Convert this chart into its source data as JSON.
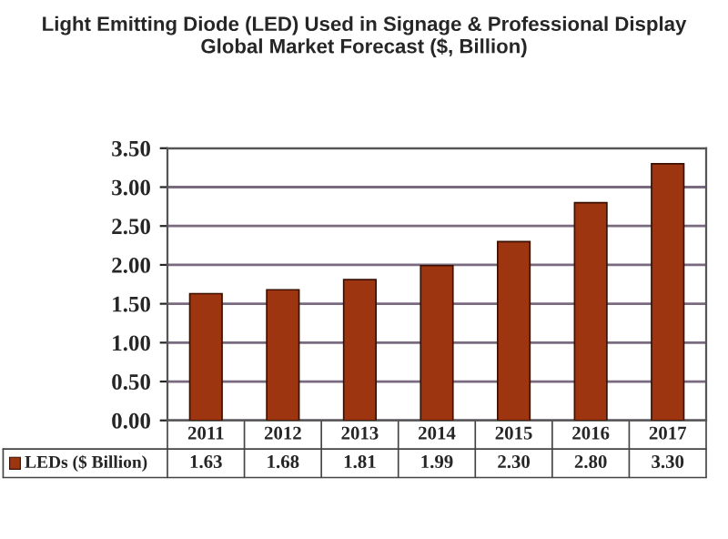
{
  "chart_data": {
    "type": "bar",
    "title": "Light Emitting Diode (LED) Used in Signage & Professional Display\nGlobal Market Forecast ($, Billion)",
    "categories": [
      "2011",
      "2012",
      "2013",
      "2014",
      "2015",
      "2016",
      "2017"
    ],
    "series": [
      {
        "name": "LEDs ($ Billion)",
        "color": "#9c3510",
        "values": [
          1.63,
          1.68,
          1.81,
          1.99,
          2.3,
          2.8,
          3.3
        ],
        "value_labels": [
          "1.63",
          "1.68",
          "1.81",
          "1.99",
          "2.30",
          "2.80",
          "3.30"
        ]
      }
    ],
    "ylim": [
      0,
      3.5
    ],
    "yticks": [
      {
        "value": 0,
        "label": "0.00"
      },
      {
        "value": 0.5,
        "label": "0.50"
      },
      {
        "value": 1,
        "label": "1.00"
      },
      {
        "value": 1.5,
        "label": "1.50"
      },
      {
        "value": 2,
        "label": "2.00"
      },
      {
        "value": 2.5,
        "label": "2.50"
      },
      {
        "value": 3,
        "label": "3.00"
      },
      {
        "value": 3.5,
        "label": "3.50"
      }
    ],
    "grid": "y",
    "legend": "bottom left"
  }
}
